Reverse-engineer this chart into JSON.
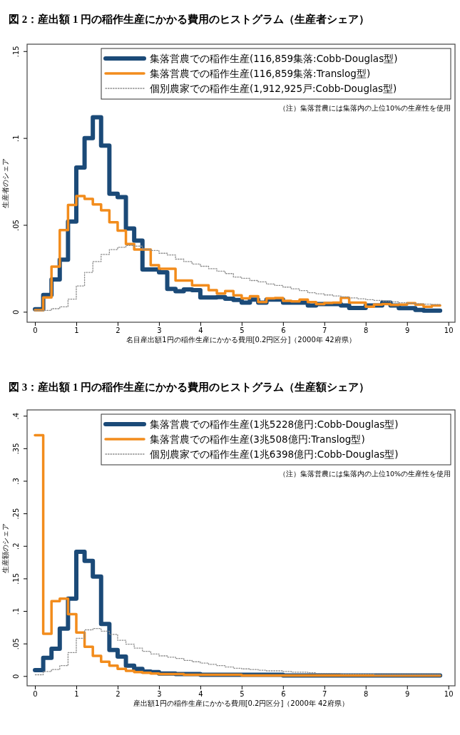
{
  "chart_data": [
    {
      "type": "step",
      "title": "図 2：産出額 1 円の稲作生産にかかる費用のヒストグラム（生産者シェア）",
      "xlabel": "名目産出額1円の稲作生産にかかる費用[0.2円区分]（2000年 42府県）",
      "ylabel": "生産者のシェア",
      "annotations": [
        "（注）集落営農には集落内の上位10%の生産性を使用"
      ],
      "x": [
        0,
        0.2,
        0.4,
        0.6,
        0.8,
        1,
        1.2,
        1.4,
        1.6,
        1.8,
        2,
        2.2,
        2.4,
        2.6,
        2.8,
        3,
        3.2,
        3.4,
        3.6,
        3.8,
        4,
        4.2,
        4.4,
        4.6,
        4.8,
        5,
        5.2,
        5.4,
        5.6,
        5.8,
        6,
        6.2,
        6.4,
        6.6,
        6.8,
        7,
        7.2,
        7.4,
        7.6,
        7.8,
        8,
        8.2,
        8.4,
        8.6,
        8.8,
        9,
        9.2,
        9.4,
        9.6,
        9.8
      ],
      "series": [
        {
          "name": "集落営農での稲作生産(116,859集落:Cobb-Douglas型)",
          "color": "#1b4a78",
          "line_style": "solid",
          "values": [
            0.0015,
            0.0097,
            0.0186,
            0.03,
            0.052,
            0.083,
            0.1,
            0.112,
            0.0956,
            0.068,
            0.066,
            0.048,
            0.041,
            0.0244,
            0.0244,
            0.0227,
            0.0132,
            0.0118,
            0.0129,
            0.0125,
            0.0083,
            0.0083,
            0.0085,
            0.0075,
            0.0068,
            0.0053,
            0.007,
            0.0053,
            0.007,
            0.007,
            0.0053,
            0.0053,
            0.0053,
            0.0036,
            0.0045,
            0.0045,
            0.0045,
            0.0036,
            0.0022,
            0.0022,
            0.0036,
            0.0036,
            0.0053,
            0.0036,
            0.0021,
            0.0021,
            0.0011,
            0.0007,
            0.0007,
            0.0007
          ]
        },
        {
          "name": "集落営農での稲作生産(116,859集落:Translog型)",
          "color": "#f28c1c",
          "line_style": "solid",
          "values": [
            0.001,
            0.0083,
            0.026,
            0.047,
            0.0615,
            0.0666,
            0.065,
            0.0618,
            0.0584,
            0.0515,
            0.0467,
            0.039,
            0.0358,
            0.0358,
            0.0268,
            0.0248,
            0.0248,
            0.018,
            0.018,
            0.0152,
            0.0152,
            0.0125,
            0.0105,
            0.012,
            0.0095,
            0.0077,
            0.009,
            0.0056,
            0.0077,
            0.0079,
            0.0063,
            0.006,
            0.007,
            0.0056,
            0.0045,
            0.0051,
            0.0053,
            0.0081,
            0.0053,
            0.0053,
            0.0029,
            0.0042,
            0.0045,
            0.004,
            0.0042,
            0.005,
            0.0042,
            0.0029,
            0.0036,
            0.0036
          ]
        },
        {
          "name": "個別農家での稲作生産(1,912,925戸:Cobb-Douglas型)",
          "color": "#8c8c8c",
          "line_style": "dotted",
          "values": [
            0.0008,
            0.0008,
            0.0018,
            0.0029,
            0.0073,
            0.0149,
            0.0227,
            0.0289,
            0.033,
            0.0358,
            0.0371,
            0.0382,
            0.0378,
            0.036,
            0.0353,
            0.0337,
            0.0327,
            0.0303,
            0.0289,
            0.0275,
            0.0262,
            0.0248,
            0.0234,
            0.022,
            0.02,
            0.0193,
            0.018,
            0.0172,
            0.016,
            0.0152,
            0.0142,
            0.0132,
            0.0122,
            0.011,
            0.0104,
            0.0097,
            0.0091,
            0.0086,
            0.008,
            0.0075,
            0.007,
            0.0066,
            0.0062,
            0.0057,
            0.0052,
            0.0049,
            0.0046,
            0.0044,
            0.0042,
            0.0042
          ]
        }
      ],
      "xlim": [
        -0.19,
        10.16
      ],
      "xticks": [
        0,
        1,
        2,
        3,
        4,
        5,
        6,
        7,
        8,
        9,
        10
      ],
      "ylim": [
        -0.006,
        0.154
      ],
      "yticks": [
        0,
        {
          "value": 0.05,
          "label": ".05"
        },
        {
          "value": 0.1,
          "label": ".1"
        },
        {
          "value": 0.15,
          "label": ".15"
        }
      ],
      "legend": "top right",
      "grid": false
    },
    {
      "type": "step",
      "title": "図 3：産出額 1 円の稲作生産にかかる費用のヒストグラム（生産額シェア）",
      "xlabel": "産出額1円の稲作生産にかかる費用[0.2円区分]（2000年 42府県）",
      "ylabel": "生産額のシェア",
      "annotations": [
        "（注）集落営農には集落内の上位10%の生産性を使用"
      ],
      "x": [
        0,
        0.2,
        0.4,
        0.6,
        0.8,
        1,
        1.2,
        1.4,
        1.6,
        1.8,
        2,
        2.2,
        2.4,
        2.6,
        2.8,
        3,
        3.2,
        3.4,
        3.6,
        3.8,
        4,
        4.2,
        4.4,
        4.6,
        4.8,
        5,
        5.2,
        5.4,
        5.6,
        5.8,
        6,
        6.2,
        6.4,
        6.6,
        6.8,
        7,
        7.2,
        7.4,
        7.6,
        7.8,
        8,
        8.2,
        8.4,
        8.6,
        8.8,
        9,
        9.2,
        9.4,
        9.6,
        9.8
      ],
      "series": [
        {
          "name": "集落営農での稲作生産(1兆5228億円:Cobb-Douglas型)",
          "color": "#1b4a78",
          "line_style": "solid",
          "values": [
            0.009,
            0.028,
            0.042,
            0.073,
            0.119,
            0.191,
            0.177,
            0.153,
            0.08,
            0.04,
            0.03,
            0.016,
            0.011,
            0.007,
            0.006,
            0.004,
            0.004,
            0.003,
            0.003,
            0.003,
            0.002,
            0.002,
            0.002,
            0.002,
            0.002,
            0.002,
            0.002,
            0.002,
            0.002,
            0.002,
            0.001,
            0.001,
            0.001,
            0.001,
            0.001,
            0.001,
            0.001,
            0.001,
            0.001,
            0.001,
            0.001,
            0.001,
            0.001,
            0.001,
            0.001,
            0.001,
            0.001,
            0.001,
            0.001,
            0.001
          ]
        },
        {
          "name": "集落営農での稲作生産(3兆508億円:Translog型)",
          "color": "#f28c1c",
          "line_style": "solid",
          "values": [
            0.37,
            0.065,
            0.115,
            0.119,
            0.095,
            0.067,
            0.045,
            0.031,
            0.022,
            0.016,
            0.011,
            0.008,
            0.006,
            0.005,
            0.004,
            0.003,
            0.003,
            0.003,
            0.002,
            0.002,
            0.002,
            0.002,
            0.002,
            0.002,
            0.002,
            0.001,
            0.001,
            0.001,
            0.001,
            0.001,
            0.001,
            0.001,
            0.001,
            0.001,
            0.001,
            0.001,
            0.001,
            0.001,
            0.001,
            0.001,
            0.001,
            0.001,
            0.001,
            0.001,
            0.001,
            0.001,
            0.001,
            0.001,
            0.001,
            0.001
          ]
        },
        {
          "name": "個別農家での稲作生産(1兆6398億円:Cobb-Douglas型)",
          "color": "#8c8c8c",
          "line_style": "dotted",
          "values": [
            0.002,
            0.007,
            0.01,
            0.016,
            0.036,
            0.058,
            0.071,
            0.073,
            0.069,
            0.064,
            0.055,
            0.049,
            0.043,
            0.038,
            0.034,
            0.031,
            0.029,
            0.027,
            0.024,
            0.022,
            0.02,
            0.018,
            0.016,
            0.014,
            0.012,
            0.011,
            0.01,
            0.009,
            0.008,
            0.008,
            0.007,
            0.006,
            0.006,
            0.005,
            0.004,
            0.004,
            0.004,
            0.003,
            0.003,
            0.003,
            0.003,
            0.002,
            0.002,
            0.002,
            0.002,
            0.002,
            0.002,
            0.002,
            0.002,
            0.002
          ]
        }
      ],
      "xlim": [
        -0.19,
        10.16
      ],
      "xticks": [
        0,
        1,
        2,
        3,
        4,
        5,
        6,
        7,
        8,
        9,
        10
      ],
      "ylim": [
        -0.015,
        0.409
      ],
      "yticks": [
        0,
        {
          "value": 0.05,
          "label": ".05"
        },
        {
          "value": 0.1,
          "label": ".1"
        },
        {
          "value": 0.15,
          "label": ".15"
        },
        {
          "value": 0.2,
          "label": ".2"
        },
        {
          "value": 0.25,
          "label": ".25"
        },
        {
          "value": 0.3,
          "label": ".3"
        },
        {
          "value": 0.35,
          "label": ".35"
        },
        {
          "value": 0.4,
          "label": ".4"
        }
      ],
      "legend": "top right",
      "grid": false
    }
  ]
}
